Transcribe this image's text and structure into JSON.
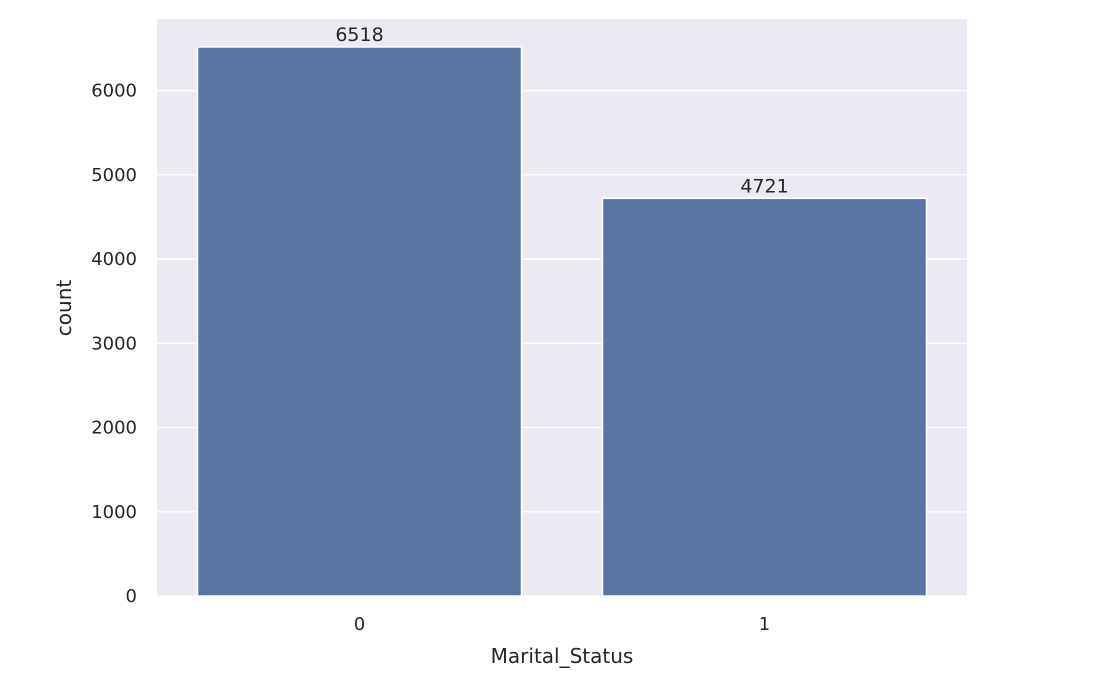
{
  "chart_data": {
    "type": "bar",
    "categories": [
      "0",
      "1"
    ],
    "values": [
      6518,
      4721
    ],
    "data_labels": [
      "6518",
      "4721"
    ],
    "title": "",
    "xlabel": "Marital_Status",
    "ylabel": "count",
    "ylim": [
      0,
      6850
    ],
    "yticks": [
      0,
      1000,
      2000,
      3000,
      4000,
      5000,
      6000
    ],
    "grid": true,
    "legend": "none"
  },
  "colors": {
    "bar": "#5975a4",
    "plot_background": "#eaeaf2",
    "grid": "#ffffff",
    "text": "#262626"
  }
}
